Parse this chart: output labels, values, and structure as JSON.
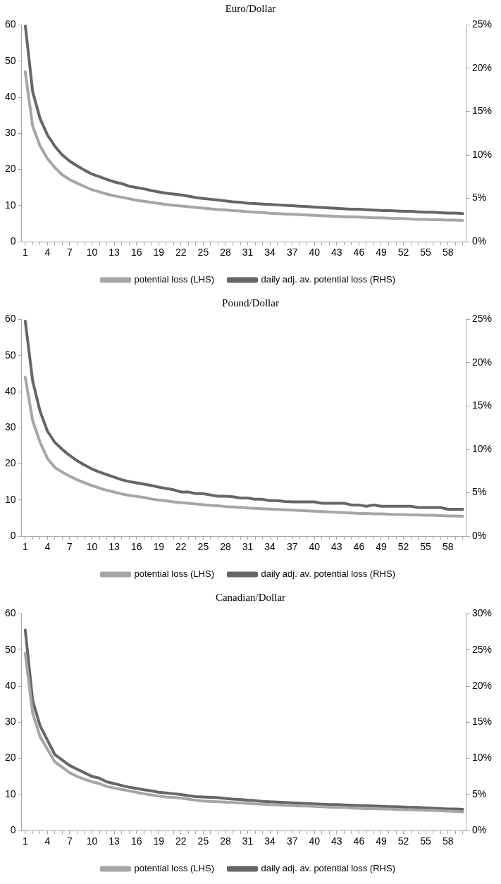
{
  "chart_data": [
    {
      "type": "line",
      "title": "Euro/Dollar",
      "marker": "none",
      "legend": "bottom",
      "categories": [
        "1",
        null,
        null,
        "4",
        null,
        null,
        "7",
        null,
        null,
        "10",
        null,
        null,
        "13",
        null,
        null,
        "16",
        null,
        null,
        "19",
        null,
        null,
        "22",
        null,
        null,
        "25",
        null,
        null,
        "28",
        null,
        null,
        "31",
        null,
        null,
        "34",
        null,
        null,
        "37",
        null,
        null,
        "40",
        null,
        null,
        "43",
        null,
        null,
        "46",
        null,
        null,
        "49",
        null,
        null,
        "52",
        null,
        null,
        "55",
        null,
        null,
        "58",
        null,
        null
      ],
      "ylim": [
        0,
        60
      ],
      "yticks": [
        0,
        10,
        20,
        30,
        40,
        50,
        60
      ],
      "y2lim": [
        0,
        25
      ],
      "y2ticks": [
        {
          "value": 0,
          "label": "0%"
        },
        {
          "value": 5,
          "label": "5%"
        },
        {
          "value": 10,
          "label": "10%"
        },
        {
          "value": 15,
          "label": "15%"
        },
        {
          "value": 20,
          "label": "20%"
        },
        {
          "value": 25,
          "label": "25%"
        }
      ],
      "series": [
        {
          "name": "potential loss (LHS)",
          "color": "#a6a6a6",
          "values": [
            47,
            32,
            26.5,
            23,
            20.5,
            18.5,
            17.2,
            16.2,
            15.3,
            14.4,
            13.8,
            13.2,
            12.7,
            12.3,
            11.9,
            11.5,
            11.2,
            10.9,
            10.6,
            10.3,
            10.1,
            9.9,
            9.7,
            9.5,
            9.3,
            9.1,
            8.9,
            8.8,
            8.6,
            8.5,
            8.3,
            8.2,
            8.1,
            7.9,
            7.8,
            7.7,
            7.6,
            7.5,
            7.4,
            7.3,
            7.2,
            7.1,
            7.0,
            6.9,
            6.9,
            6.8,
            6.7,
            6.6,
            6.6,
            6.5,
            6.4,
            6.4,
            6.3,
            6.2,
            6.2,
            6.1,
            6.1,
            6.0,
            6.0,
            5.9
          ]
        },
        {
          "name": "daily adj. av. potential loss (RHS)",
          "color": "#666666",
          "axis": "y2",
          "values": [
            25,
            17.3,
            14.2,
            12.3,
            11.0,
            10.0,
            9.3,
            8.75,
            8.25,
            7.8,
            7.5,
            7.2,
            6.9,
            6.7,
            6.4,
            6.25,
            6.1,
            5.9,
            5.75,
            5.6,
            5.5,
            5.4,
            5.25,
            5.1,
            5.0,
            4.9,
            4.8,
            4.7,
            4.6,
            4.55,
            4.45,
            4.4,
            4.35,
            4.3,
            4.25,
            4.2,
            4.15,
            4.1,
            4.05,
            4.0,
            3.95,
            3.9,
            3.85,
            3.8,
            3.75,
            3.75,
            3.7,
            3.65,
            3.6,
            3.6,
            3.55,
            3.5,
            3.5,
            3.45,
            3.4,
            3.4,
            3.35,
            3.3,
            3.3,
            3.25
          ]
        }
      ]
    },
    {
      "type": "line",
      "title": "Pound/Dollar",
      "marker": "none",
      "legend": "bottom",
      "categories": [
        "1",
        null,
        null,
        "4",
        null,
        null,
        "7",
        null,
        null,
        "10",
        null,
        null,
        "13",
        null,
        null,
        "16",
        null,
        null,
        "19",
        null,
        null,
        "22",
        null,
        null,
        "25",
        null,
        null,
        "28",
        null,
        null,
        "31",
        null,
        null,
        "34",
        null,
        null,
        "37",
        null,
        null,
        "40",
        null,
        null,
        "43",
        null,
        null,
        "46",
        null,
        null,
        "49",
        null,
        null,
        "52",
        null,
        null,
        "55",
        null,
        null,
        "58",
        null,
        null
      ],
      "ylim": [
        0,
        60
      ],
      "yticks": [
        0,
        10,
        20,
        30,
        40,
        50,
        60
      ],
      "y2lim": [
        0,
        25
      ],
      "y2ticks": [
        {
          "value": 0,
          "label": "0%"
        },
        {
          "value": 5,
          "label": "5%"
        },
        {
          "value": 10,
          "label": "10%"
        },
        {
          "value": 15,
          "label": "15%"
        },
        {
          "value": 20,
          "label": "20%"
        },
        {
          "value": 25,
          "label": "25%"
        }
      ],
      "series": [
        {
          "name": "potential loss (LHS)",
          "color": "#a6a6a6",
          "values": [
            44,
            32,
            26,
            21.5,
            19,
            17.7,
            16.6,
            15.6,
            14.8,
            14,
            13.3,
            12.7,
            12.2,
            11.7,
            11.3,
            11,
            10.7,
            10.3,
            10,
            9.8,
            9.5,
            9.3,
            9.1,
            8.9,
            8.7,
            8.5,
            8.4,
            8.2,
            8.1,
            8,
            7.8,
            7.7,
            7.6,
            7.5,
            7.4,
            7.3,
            7.2,
            7.1,
            7,
            6.9,
            6.8,
            6.7,
            6.6,
            6.5,
            6.4,
            6.3,
            6.3,
            6.2,
            6.2,
            6.1,
            6.0,
            6.0,
            5.9,
            5.9,
            5.8,
            5.8,
            5.7,
            5.6,
            5.6,
            5.5
          ]
        },
        {
          "name": "daily adj. av. potential loss (RHS)",
          "color": "#666666",
          "axis": "y2",
          "values": [
            24.8,
            17.9,
            14.4,
            12.1,
            10.8,
            10,
            9.3,
            8.7,
            8.2,
            7.75,
            7.4,
            7.1,
            6.8,
            6.5,
            6.3,
            6.15,
            6.0,
            5.85,
            5.65,
            5.5,
            5.35,
            5.1,
            5.1,
            4.9,
            4.9,
            4.75,
            4.6,
            4.6,
            4.55,
            4.4,
            4.4,
            4.25,
            4.25,
            4.1,
            4.1,
            4.0,
            3.95,
            3.95,
            3.95,
            3.95,
            3.8,
            3.8,
            3.8,
            3.8,
            3.6,
            3.6,
            3.45,
            3.6,
            3.45,
            3.45,
            3.45,
            3.45,
            3.45,
            3.3,
            3.3,
            3.3,
            3.3,
            3.1,
            3.1,
            3.1
          ]
        }
      ]
    },
    {
      "type": "line",
      "title": "Canadian/Dollar",
      "marker": "none",
      "legend": "bottom",
      "categories": [
        "1",
        null,
        null,
        "4",
        null,
        null,
        "7",
        null,
        null,
        "10",
        null,
        null,
        "13",
        null,
        null,
        "16",
        null,
        null,
        "19",
        null,
        null,
        "22",
        null,
        null,
        "25",
        null,
        null,
        "28",
        null,
        null,
        "31",
        null,
        null,
        "34",
        null,
        null,
        "37",
        null,
        null,
        "40",
        null,
        null,
        "43",
        null,
        null,
        "46",
        null,
        null,
        "49",
        null,
        null,
        "52",
        null,
        null,
        "55",
        null,
        null,
        "58",
        null,
        null
      ],
      "ylim": [
        0,
        60
      ],
      "yticks": [
        0,
        10,
        20,
        30,
        40,
        50,
        60
      ],
      "y2lim": [
        0,
        30
      ],
      "y2ticks": [
        {
          "value": 0,
          "label": "0%"
        },
        {
          "value": 5,
          "label": "5%"
        },
        {
          "value": 10,
          "label": "10%"
        },
        {
          "value": 15,
          "label": "15%"
        },
        {
          "value": 20,
          "label": "20%"
        },
        {
          "value": 25,
          "label": "25%"
        },
        {
          "value": 30,
          "label": "30%"
        }
      ],
      "series": [
        {
          "name": "potential loss (LHS)",
          "color": "#a6a6a6",
          "values": [
            49,
            32.5,
            26,
            22.5,
            19,
            17.5,
            16,
            15,
            14.2,
            13.5,
            13,
            12.2,
            11.8,
            11.4,
            11,
            10.6,
            10.2,
            9.9,
            9.6,
            9.3,
            9.2,
            9,
            8.7,
            8.4,
            8.2,
            8.1,
            8,
            7.9,
            7.8,
            7.7,
            7.5,
            7.4,
            7.3,
            7.2,
            7.1,
            7,
            6.9,
            6.8,
            6.8,
            6.7,
            6.6,
            6.5,
            6.4,
            6.4,
            6.3,
            6.2,
            6.1,
            6.1,
            6.0,
            6.0,
            5.9,
            5.8,
            5.8,
            5.7,
            5.6,
            5.6,
            5.5,
            5.4,
            5.3,
            5.2
          ]
        },
        {
          "name": "daily adj. av. potential loss (RHS)",
          "color": "#666666",
          "axis": "y2",
          "values": [
            27.75,
            18,
            14.5,
            12.5,
            10.5,
            9.75,
            9,
            8.5,
            8,
            7.5,
            7.25,
            6.75,
            6.5,
            6.25,
            6,
            5.85,
            5.65,
            5.5,
            5.3,
            5.2,
            5.1,
            5,
            4.85,
            4.7,
            4.65,
            4.6,
            4.55,
            4.45,
            4.35,
            4.3,
            4.2,
            4.15,
            4.05,
            4.0,
            3.95,
            3.9,
            3.85,
            3.8,
            3.75,
            3.7,
            3.65,
            3.6,
            3.6,
            3.55,
            3.5,
            3.45,
            3.45,
            3.4,
            3.35,
            3.3,
            3.3,
            3.25,
            3.2,
            3.2,
            3.15,
            3.1,
            3.05,
            3.0,
            3.0,
            2.95
          ]
        }
      ]
    }
  ]
}
